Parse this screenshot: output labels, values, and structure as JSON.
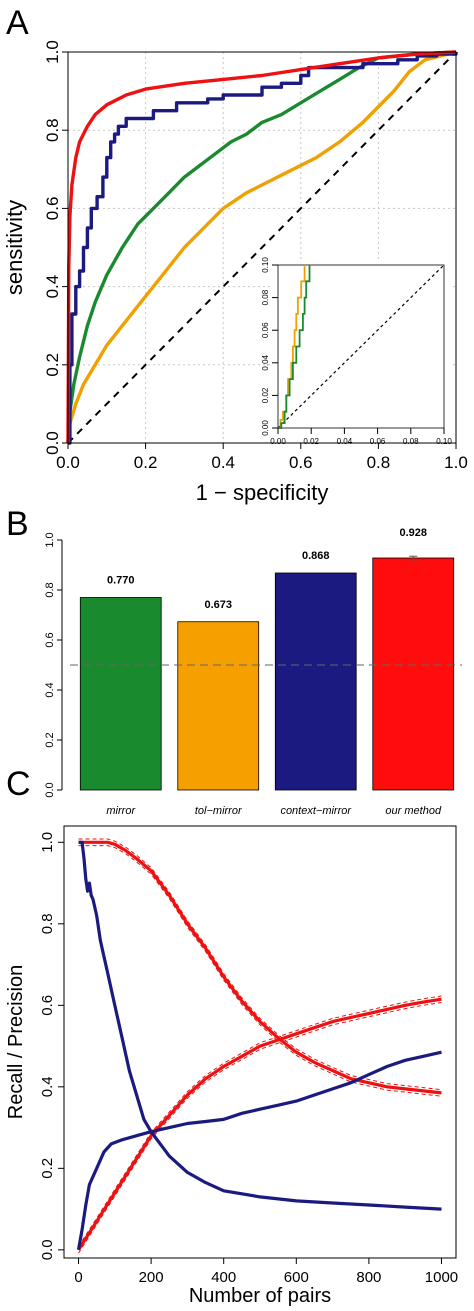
{
  "chart_data": [
    {
      "panel": "A",
      "type": "line",
      "xlabel": "1 − specificity",
      "ylabel": "sensitivity",
      "xlim": [
        0,
        1
      ],
      "ylim": [
        0,
        1
      ],
      "xticks": [
        "0.0",
        "0.2",
        "0.4",
        "0.6",
        "0.8",
        "1.0"
      ],
      "yticks": [
        "0.0",
        "0.2",
        "0.4",
        "0.6",
        "0.8",
        "1.0"
      ],
      "grid": true,
      "series": [
        {
          "color": "#f0a000",
          "step": false,
          "points": [
            [
              0,
              0
            ],
            [
              0.005,
              0.05
            ],
            [
              0.02,
              0.1
            ],
            [
              0.04,
              0.15
            ],
            [
              0.07,
              0.2
            ],
            [
              0.1,
              0.25
            ],
            [
              0.14,
              0.3
            ],
            [
              0.18,
              0.35
            ],
            [
              0.22,
              0.4
            ],
            [
              0.26,
              0.45
            ],
            [
              0.3,
              0.5
            ],
            [
              0.35,
              0.55
            ],
            [
              0.4,
              0.6
            ],
            [
              0.46,
              0.64
            ],
            [
              0.52,
              0.67
            ],
            [
              0.58,
              0.7
            ],
            [
              0.64,
              0.73
            ],
            [
              0.7,
              0.77
            ],
            [
              0.76,
              0.82
            ],
            [
              0.8,
              0.86
            ],
            [
              0.84,
              0.9
            ],
            [
              0.88,
              0.95
            ],
            [
              0.92,
              0.98
            ],
            [
              0.96,
              0.99
            ],
            [
              1,
              1
            ]
          ]
        },
        {
          "color": "#1a8a2e",
          "step": false,
          "points": [
            [
              0,
              0
            ],
            [
              0.005,
              0.08
            ],
            [
              0.015,
              0.15
            ],
            [
              0.03,
              0.22
            ],
            [
              0.05,
              0.3
            ],
            [
              0.07,
              0.36
            ],
            [
              0.1,
              0.43
            ],
            [
              0.14,
              0.5
            ],
            [
              0.18,
              0.56
            ],
            [
              0.22,
              0.6
            ],
            [
              0.26,
              0.64
            ],
            [
              0.3,
              0.68
            ],
            [
              0.34,
              0.71
            ],
            [
              0.38,
              0.74
            ],
            [
              0.42,
              0.77
            ],
            [
              0.46,
              0.79
            ],
            [
              0.5,
              0.82
            ],
            [
              0.55,
              0.84
            ],
            [
              0.6,
              0.87
            ],
            [
              0.65,
              0.9
            ],
            [
              0.7,
              0.93
            ],
            [
              0.75,
              0.96
            ],
            [
              0.8,
              0.985
            ],
            [
              0.9,
              0.995
            ],
            [
              1,
              1
            ]
          ]
        },
        {
          "color": "#1a1a80",
          "step": true,
          "points": [
            [
              0,
              0
            ],
            [
              0.005,
              0.2
            ],
            [
              0.01,
              0.33
            ],
            [
              0.02,
              0.4
            ],
            [
              0.03,
              0.44
            ],
            [
              0.04,
              0.5
            ],
            [
              0.05,
              0.55
            ],
            [
              0.06,
              0.6
            ],
            [
              0.075,
              0.63
            ],
            [
              0.09,
              0.68
            ],
            [
              0.1,
              0.73
            ],
            [
              0.11,
              0.77
            ],
            [
              0.12,
              0.79
            ],
            [
              0.13,
              0.81
            ],
            [
              0.15,
              0.83
            ],
            [
              0.2,
              0.83
            ],
            [
              0.22,
              0.85
            ],
            [
              0.28,
              0.87
            ],
            [
              0.34,
              0.87
            ],
            [
              0.36,
              0.88
            ],
            [
              0.4,
              0.89
            ],
            [
              0.46,
              0.89
            ],
            [
              0.5,
              0.91
            ],
            [
              0.55,
              0.92
            ],
            [
              0.6,
              0.94
            ],
            [
              0.62,
              0.96
            ],
            [
              0.7,
              0.96
            ],
            [
              0.76,
              0.97
            ],
            [
              0.8,
              0.97
            ],
            [
              0.85,
              0.98
            ],
            [
              0.9,
              0.99
            ],
            [
              0.95,
              0.995
            ],
            [
              1,
              1
            ]
          ]
        },
        {
          "color": "#ee1111",
          "step": false,
          "points": [
            [
              0,
              0
            ],
            [
              0.002,
              0.45
            ],
            [
              0.005,
              0.58
            ],
            [
              0.01,
              0.66
            ],
            [
              0.02,
              0.73
            ],
            [
              0.03,
              0.77
            ],
            [
              0.05,
              0.81
            ],
            [
              0.07,
              0.84
            ],
            [
              0.1,
              0.865
            ],
            [
              0.15,
              0.89
            ],
            [
              0.2,
              0.905
            ],
            [
              0.3,
              0.92
            ],
            [
              0.4,
              0.93
            ],
            [
              0.5,
              0.94
            ],
            [
              0.6,
              0.955
            ],
            [
              0.7,
              0.97
            ],
            [
              0.8,
              0.985
            ],
            [
              0.9,
              0.995
            ],
            [
              1,
              1
            ]
          ]
        }
      ],
      "inset": {
        "xlim": [
          0,
          0.1
        ],
        "ylim": [
          0,
          0.1
        ],
        "xticks": [
          "0.00",
          "0.02",
          "0.04",
          "0.06",
          "0.08",
          "0.10"
        ],
        "yticks": [
          "0.00",
          "0.02",
          "0.04",
          "0.06",
          "0.08",
          "0.10"
        ],
        "series": [
          {
            "color": "#f0a000",
            "points": [
              [
                0,
                0
              ],
              [
                0.0015,
                0.005
              ],
              [
                0.003,
                0.01
              ],
              [
                0.005,
                0.02
              ],
              [
                0.006,
                0.03
              ],
              [
                0.008,
                0.04
              ],
              [
                0.009,
                0.05
              ],
              [
                0.01,
                0.06
              ],
              [
                0.011,
                0.07
              ],
              [
                0.012,
                0.08
              ],
              [
                0.014,
                0.09
              ],
              [
                0.016,
                0.1
              ]
            ]
          },
          {
            "color": "#1a8a2e",
            "points": [
              [
                0,
                0
              ],
              [
                0.002,
                0.003
              ],
              [
                0.004,
                0.01
              ],
              [
                0.005,
                0.02
              ],
              [
                0.007,
                0.03
              ],
              [
                0.009,
                0.04
              ],
              [
                0.011,
                0.05
              ],
              [
                0.013,
                0.06
              ],
              [
                0.015,
                0.07
              ],
              [
                0.016,
                0.08
              ],
              [
                0.017,
                0.09
              ],
              [
                0.019,
                0.1
              ]
            ]
          }
        ]
      }
    },
    {
      "panel": "B",
      "type": "bar",
      "categories": [
        "mirror",
        "tol−mirror",
        "context−mirror",
        "our method"
      ],
      "values": [
        0.77,
        0.673,
        0.868,
        0.928
      ],
      "value_labels": [
        "0.770",
        "0.673",
        "0.868",
        "0.928"
      ],
      "colors": [
        "#1a8a2e",
        "#f5a000",
        "#1a1a80",
        "#ff0d0d"
      ],
      "ylim": [
        0,
        1
      ],
      "yticks": [
        "0.0",
        "0.2",
        "0.4",
        "0.6",
        "0.8",
        "1.0"
      ],
      "reference_line": 0.5
    },
    {
      "panel": "C",
      "type": "line",
      "xlabel": "Number of pairs",
      "ylabel": "Recall / Precision",
      "xlim": [
        0,
        1000
      ],
      "ylim": [
        0,
        1
      ],
      "xticks": [
        "0",
        "200",
        "400",
        "600",
        "800",
        "1000"
      ],
      "yticks": [
        "0.0",
        "0.2",
        "0.4",
        "0.6",
        "0.8",
        "1.0"
      ],
      "series": [
        {
          "color": "#ee1111",
          "band": 0.008,
          "points": [
            [
              0,
              1
            ],
            [
              80,
              1
            ],
            [
              100,
              0.995
            ],
            [
              130,
              0.98
            ],
            [
              160,
              0.96
            ],
            [
              200,
              0.93
            ],
            [
              250,
              0.87
            ],
            [
              300,
              0.8
            ],
            [
              350,
              0.74
            ],
            [
              400,
              0.67
            ],
            [
              450,
              0.61
            ],
            [
              500,
              0.56
            ],
            [
              550,
              0.52
            ],
            [
              600,
              0.485
            ],
            [
              650,
              0.46
            ],
            [
              700,
              0.44
            ],
            [
              750,
              0.42
            ],
            [
              800,
              0.41
            ],
            [
              850,
              0.4
            ],
            [
              900,
              0.395
            ],
            [
              950,
              0.39
            ],
            [
              1000,
              0.385
            ]
          ]
        },
        {
          "color": "#ee1111",
          "band": 0.008,
          "points": [
            [
              0,
              0
            ],
            [
              50,
              0.07
            ],
            [
              100,
              0.14
            ],
            [
              150,
              0.21
            ],
            [
              200,
              0.28
            ],
            [
              250,
              0.33
            ],
            [
              300,
              0.38
            ],
            [
              350,
              0.42
            ],
            [
              400,
              0.45
            ],
            [
              450,
              0.475
            ],
            [
              500,
              0.5
            ],
            [
              550,
              0.515
            ],
            [
              600,
              0.53
            ],
            [
              650,
              0.545
            ],
            [
              700,
              0.56
            ],
            [
              750,
              0.57
            ],
            [
              800,
              0.58
            ],
            [
              850,
              0.59
            ],
            [
              900,
              0.6
            ],
            [
              950,
              0.608
            ],
            [
              1000,
              0.615
            ]
          ]
        },
        {
          "color": "#1a1a80",
          "band": 0,
          "points": [
            [
              0,
              1
            ],
            [
              10,
              1
            ],
            [
              15,
              0.96
            ],
            [
              20,
              0.91
            ],
            [
              25,
              0.88
            ],
            [
              30,
              0.9
            ],
            [
              35,
              0.87
            ],
            [
              40,
              0.86
            ],
            [
              50,
              0.82
            ],
            [
              60,
              0.76
            ],
            [
              70,
              0.72
            ],
            [
              80,
              0.68
            ],
            [
              100,
              0.6
            ],
            [
              120,
              0.52
            ],
            [
              140,
              0.44
            ],
            [
              160,
              0.38
            ],
            [
              180,
              0.32
            ],
            [
              200,
              0.29
            ],
            [
              250,
              0.23
            ],
            [
              300,
              0.19
            ],
            [
              350,
              0.165
            ],
            [
              400,
              0.145
            ],
            [
              500,
              0.13
            ],
            [
              600,
              0.12
            ],
            [
              700,
              0.115
            ],
            [
              800,
              0.11
            ],
            [
              900,
              0.105
            ],
            [
              1000,
              0.1
            ]
          ]
        },
        {
          "color": "#1a1a80",
          "band": 0,
          "points": [
            [
              0,
              0
            ],
            [
              10,
              0.05
            ],
            [
              20,
              0.11
            ],
            [
              30,
              0.16
            ],
            [
              50,
              0.2
            ],
            [
              70,
              0.24
            ],
            [
              90,
              0.26
            ],
            [
              120,
              0.27
            ],
            [
              160,
              0.28
            ],
            [
              200,
              0.29
            ],
            [
              250,
              0.3
            ],
            [
              300,
              0.31
            ],
            [
              350,
              0.315
            ],
            [
              400,
              0.32
            ],
            [
              450,
              0.335
            ],
            [
              500,
              0.345
            ],
            [
              550,
              0.355
            ],
            [
              600,
              0.365
            ],
            [
              650,
              0.38
            ],
            [
              700,
              0.395
            ],
            [
              750,
              0.41
            ],
            [
              800,
              0.43
            ],
            [
              850,
              0.45
            ],
            [
              900,
              0.465
            ],
            [
              950,
              0.475
            ],
            [
              1000,
              0.485
            ]
          ]
        }
      ]
    }
  ],
  "panel_letters": [
    "A",
    "B",
    "C"
  ]
}
